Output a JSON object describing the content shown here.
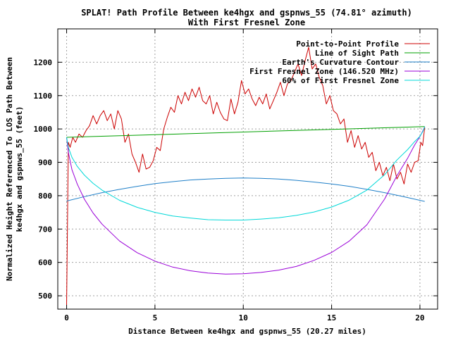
{
  "colors": {
    "profile": "#cc0000",
    "line_of_sight": "#00a000",
    "earth_curvature": "#1e7fc8",
    "fresnel": "#9a00d8",
    "fresnel_60": "#00d8d8"
  },
  "chart_data": {
    "type": "line",
    "title": "SPLAT! Path Profile Between ke4hgx and gspnws_55 (74.81° azimuth)",
    "subtitle": "With First Fresnel Zone",
    "xlabel": "Distance Between ke4hgx and gspnws_55 (20.27 miles)",
    "ylabel_line1": "Normalized Height Referenced To LOS Path Between",
    "ylabel_line2": "ke4hgx and gspnws_55 (feet)",
    "xlim": [
      -0.5,
      21
    ],
    "ylim": [
      460,
      1300
    ],
    "x_ticks": [
      0,
      5,
      10,
      15,
      20
    ],
    "x_tick_labels": [
      "0",
      "5",
      "10",
      "15",
      "20"
    ],
    "y_ticks": [
      500,
      600,
      700,
      800,
      900,
      1000,
      1100,
      1200
    ],
    "y_tick_labels": [
      "500",
      "600",
      "700",
      "800",
      "900",
      "1000",
      "1100",
      "1200"
    ],
    "grid": true,
    "legend_position": "top-right",
    "series": [
      {
        "name": "Point-to-Point Profile",
        "x": [
          0,
          0.1,
          0.2,
          0.35,
          0.5,
          0.7,
          0.9,
          1.1,
          1.3,
          1.5,
          1.7,
          1.9,
          2.1,
          2.3,
          2.5,
          2.7,
          2.9,
          3.1,
          3.3,
          3.5,
          3.7,
          3.9,
          4.1,
          4.3,
          4.5,
          4.7,
          4.9,
          5.1,
          5.3,
          5.5,
          5.7,
          5.9,
          6.1,
          6.3,
          6.5,
          6.7,
          6.9,
          7.1,
          7.3,
          7.5,
          7.7,
          7.9,
          8.1,
          8.3,
          8.5,
          8.7,
          8.9,
          9.1,
          9.3,
          9.5,
          9.7,
          9.9,
          10.1,
          10.3,
          10.5,
          10.7,
          10.9,
          11.1,
          11.3,
          11.5,
          11.7,
          11.9,
          12.1,
          12.3,
          12.5,
          12.7,
          12.9,
          13.1,
          13.3,
          13.5,
          13.7,
          13.9,
          14.1,
          14.3,
          14.5,
          14.7,
          14.9,
          15.1,
          15.3,
          15.5,
          15.7,
          15.9,
          16.1,
          16.3,
          16.5,
          16.7,
          16.9,
          17.1,
          17.3,
          17.5,
          17.7,
          17.9,
          18.1,
          18.3,
          18.5,
          18.7,
          18.9,
          19.1,
          19.3,
          19.5,
          19.7,
          19.9,
          20.05,
          20.15,
          20.27
        ],
        "values": [
          470,
          960,
          945,
          975,
          960,
          985,
          975,
          995,
          1010,
          1040,
          1015,
          1040,
          1055,
          1025,
          1045,
          1000,
          1055,
          1030,
          960,
          985,
          925,
          900,
          870,
          925,
          880,
          885,
          905,
          945,
          935,
          1000,
          1035,
          1065,
          1050,
          1100,
          1075,
          1110,
          1085,
          1120,
          1095,
          1125,
          1085,
          1075,
          1100,
          1045,
          1080,
          1050,
          1030,
          1025,
          1090,
          1045,
          1080,
          1145,
          1105,
          1120,
          1090,
          1070,
          1095,
          1075,
          1105,
          1060,
          1085,
          1110,
          1140,
          1100,
          1135,
          1145,
          1170,
          1195,
          1160,
          1205,
          1245,
          1180,
          1195,
          1155,
          1130,
          1075,
          1100,
          1055,
          1045,
          1015,
          1030,
          960,
          995,
          945,
          980,
          940,
          960,
          915,
          930,
          875,
          900,
          860,
          885,
          845,
          895,
          850,
          870,
          835,
          895,
          870,
          900,
          905,
          960,
          950,
          1005
        ]
      },
      {
        "name": "Line of Sight Path",
        "x": [
          0,
          20.27
        ],
        "values": [
          975,
          1007
        ]
      },
      {
        "name": "Earth's Curvature Contour",
        "x": [
          0,
          1,
          2,
          3,
          4,
          5,
          6,
          7,
          8,
          9,
          10,
          11,
          12,
          13,
          14,
          15,
          16,
          17,
          18,
          19,
          20,
          20.27
        ],
        "values": [
          784,
          797,
          809,
          819,
          828,
          836,
          842,
          847,
          850,
          852,
          853,
          852,
          850,
          846,
          841,
          835,
          828,
          819,
          809,
          798,
          786,
          783
        ]
      },
      {
        "name": "First Fresnel Zone (146.520 MHz)",
        "x": [
          0,
          0.1,
          0.3,
          0.6,
          1,
          1.5,
          2,
          3,
          4,
          5,
          6,
          7,
          8,
          9,
          10,
          11,
          12,
          13,
          14,
          15,
          16,
          17,
          18,
          18.7,
          19.3,
          19.7,
          20,
          20.17,
          20.27
        ],
        "values": [
          975,
          930,
          878,
          835,
          790,
          748,
          715,
          664,
          629,
          604,
          586,
          575,
          568,
          565,
          566,
          570,
          577,
          588,
          606,
          630,
          664,
          713,
          790,
          860,
          912,
          952,
          977,
          995,
          1007
        ]
      },
      {
        "name": "60% of First Fresnel Zone",
        "x": [
          0,
          0.1,
          0.3,
          0.6,
          1,
          1.5,
          2,
          3,
          4,
          5,
          6,
          7,
          8,
          9,
          10,
          11,
          12,
          13,
          14,
          15,
          16,
          17,
          18,
          18.7,
          19.3,
          19.7,
          20,
          20.17,
          20.27
        ],
        "values": [
          975,
          945,
          915,
          888,
          862,
          837,
          817,
          786,
          765,
          750,
          739,
          733,
          728,
          727,
          727,
          730,
          734,
          741,
          751,
          766,
          787,
          817,
          863,
          907,
          938,
          962,
          978,
          993,
          1007
        ]
      }
    ]
  }
}
